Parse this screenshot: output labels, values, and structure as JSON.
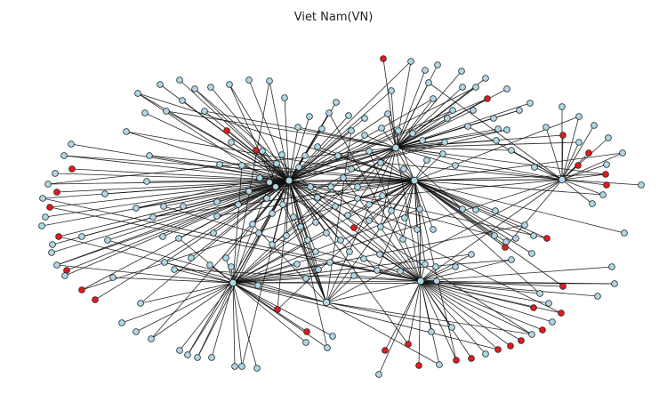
{
  "title": "Viet Nam(VN)",
  "colors": {
    "background": "#ffffff",
    "normal_node": "#add8e6",
    "highlight_node": "#e31a1c",
    "edge": "#111111"
  }
}
